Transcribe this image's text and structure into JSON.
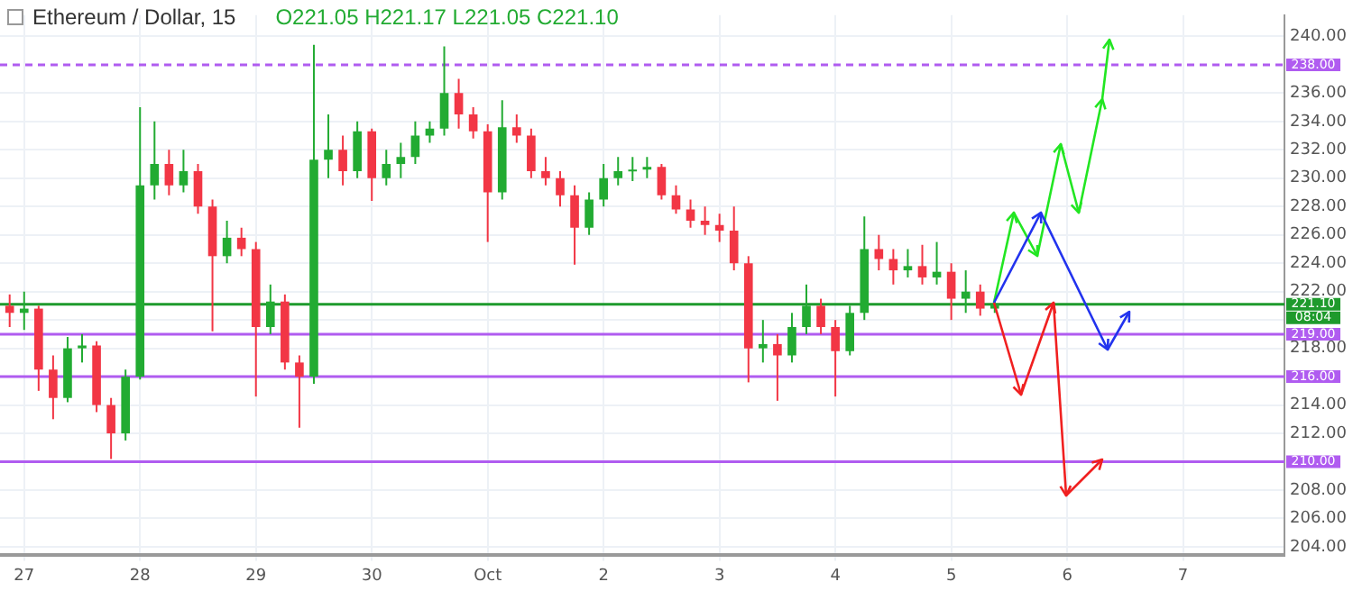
{
  "chart_data": {
    "type": "candlestick",
    "title": "Ethereum / Dollar, 15",
    "subtitle": "O221.05 H221.17 L221.05 C221.10",
    "xlim": [
      "--09-26T19:00",
      "--10-07T21:00"
    ],
    "xticks": [
      {
        "value": "--09-27",
        "label": "27"
      },
      {
        "value": "--09-28",
        "label": "28"
      },
      {
        "value": "--09-29",
        "label": "29"
      },
      {
        "value": "--09-30",
        "label": "30"
      },
      {
        "value": "--10-01",
        "label": "Oct"
      },
      {
        "value": "--10-02",
        "label": "2"
      },
      {
        "value": "--10-03",
        "label": "3"
      },
      {
        "value": "--10-04",
        "label": "4"
      },
      {
        "value": "--10-05",
        "label": "5"
      },
      {
        "value": "--10-06",
        "label": "6"
      },
      {
        "value": "--10-07",
        "label": "7"
      }
    ],
    "ylim": [
      203.4,
      241.5
    ],
    "yticks": [
      {
        "value": 204,
        "label": "204.00"
      },
      {
        "value": 206,
        "label": "206.00"
      },
      {
        "value": 208,
        "label": "208.00"
      },
      {
        "value": 212,
        "label": "212.00"
      },
      {
        "value": 214,
        "label": "214.00"
      },
      {
        "value": 218,
        "label": "218.00"
      },
      {
        "value": 220,
        "label": null
      },
      {
        "value": 222,
        "label": "222.00"
      },
      {
        "value": 224,
        "label": "224.00"
      },
      {
        "value": 226,
        "label": "226.00"
      },
      {
        "value": 228,
        "label": "228.00"
      },
      {
        "value": 230,
        "label": "230.00"
      },
      {
        "value": 232,
        "label": "232.00"
      },
      {
        "value": 234,
        "label": "234.00"
      },
      {
        "value": 236,
        "label": "236.00"
      },
      {
        "value": 240,
        "label": "240.00"
      }
    ],
    "grid": true,
    "legend": false,
    "series": [
      {
        "type": "candlestick",
        "colors": [
          "#f23645",
          "#22ab32",
          "#f23645",
          "#f23645",
          "#22ab32",
          "#22ab32",
          "#f23645",
          "#f23645",
          "#22ab32",
          "#22ab32",
          "#22ab32",
          "#f23645",
          "#22ab32",
          "#f23645",
          "#f23645",
          "#22ab32",
          "#f23645",
          "#f23645",
          "#22ab32",
          "#f23645",
          "#f23645",
          "#22ab32",
          "#22ab32",
          "#f23645",
          "#22ab32",
          "#f23645",
          "#22ab32",
          "#22ab32",
          "#22ab32",
          "#22ab32",
          "#22ab32",
          "#f23645",
          "#f23645",
          "#f23645",
          "#22ab32",
          "#f23645",
          "#f23645",
          "#f23645",
          "#f23645",
          "#f23645",
          "#22ab32",
          "#22ab32",
          "#22ab32",
          "#22ab32",
          "#22ab32",
          "#f23645",
          "#f23645",
          "#f23645",
          "#f23645",
          "#f23645",
          "#f23645",
          "#f23645",
          "#22ab32",
          "#f23645",
          "#22ab32",
          "#22ab32",
          "#f23645",
          "#f23645",
          "#22ab32",
          "#22ab32",
          "#f23645",
          "#f23645",
          "#22ab32",
          "#f23645",
          "#22ab32",
          "#f23645",
          "#22ab32",
          "#f23645",
          "#22ab32"
        ],
        "x": [
          "--09-26T21:00",
          "--09-27T00:00",
          "--09-27T03:00",
          "--09-27T06:00",
          "--09-27T09:00",
          "--09-27T12:00",
          "--09-27T15:00",
          "--09-27T18:00",
          "--09-27T21:00",
          "--09-28T00:00",
          "--09-28T03:00",
          "--09-28T06:00",
          "--09-28T09:00",
          "--09-28T12:00",
          "--09-28T15:00",
          "--09-28T18:00",
          "--09-28T21:00",
          "--09-29T00:00",
          "--09-29T03:00",
          "--09-29T06:00",
          "--09-29T09:00",
          "--09-29T12:00",
          "--09-29T15:00",
          "--09-29T18:00",
          "--09-29T21:00",
          "--09-30T00:00",
          "--09-30T03:00",
          "--09-30T06:00",
          "--09-30T09:00",
          "--09-30T12:00",
          "--09-30T15:00",
          "--09-30T18:00",
          "--09-30T21:00",
          "--10-01T00:00",
          "--10-01T03:00",
          "--10-01T06:00",
          "--10-01T09:00",
          "--10-01T12:00",
          "--10-01T15:00",
          "--10-01T18:00",
          "--10-01T21:00",
          "--10-02T00:00",
          "--10-02T03:00",
          "--10-02T06:00",
          "--10-02T09:00",
          "--10-02T12:00",
          "--10-02T15:00",
          "--10-02T18:00",
          "--10-02T21:00",
          "--10-03T00:00",
          "--10-03T03:00",
          "--10-03T06:00",
          "--10-03T09:00",
          "--10-03T12:00",
          "--10-03T15:00",
          "--10-03T18:00",
          "--10-03T21:00",
          "--10-04T00:00",
          "--10-04T03:00",
          "--10-04T06:00",
          "--10-04T09:00",
          "--10-04T12:00",
          "--10-04T15:00",
          "--10-04T18:00",
          "--10-04T21:00",
          "--10-05T00:00",
          "--10-05T03:00",
          "--10-05T06:00",
          "--10-05T09:00"
        ],
        "ohlc": [
          [
            221,
            221.8,
            219.5,
            220.5
          ],
          [
            220.5,
            222,
            219.3,
            220.8
          ],
          [
            220.8,
            221,
            215,
            216.5
          ],
          [
            216.5,
            217.5,
            213,
            214.5
          ],
          [
            214.5,
            218.8,
            214.2,
            218
          ],
          [
            218,
            219,
            217,
            218.2
          ],
          [
            218.2,
            218.5,
            213.5,
            214
          ],
          [
            214,
            214.5,
            210.2,
            212
          ],
          [
            212,
            216.5,
            211.5,
            216
          ],
          [
            216,
            235,
            215.8,
            229.5
          ],
          [
            229.5,
            234,
            228.5,
            231
          ],
          [
            231,
            232,
            228.8,
            229.5
          ],
          [
            229.5,
            232,
            229,
            230.5
          ],
          [
            230.5,
            231,
            227.5,
            228
          ],
          [
            228,
            228.5,
            219.2,
            224.5
          ],
          [
            224.5,
            227,
            224,
            225.8
          ],
          [
            225.8,
            226.5,
            224.5,
            225
          ],
          [
            225,
            225.5,
            214.6,
            219.5
          ],
          [
            219.5,
            222.5,
            219,
            221.3
          ],
          [
            221.3,
            221.8,
            216.5,
            217
          ],
          [
            217,
            217.5,
            212.4,
            216
          ],
          [
            216,
            239.4,
            215.5,
            231.3
          ],
          [
            231.3,
            234.5,
            230,
            232
          ],
          [
            232,
            233,
            229.5,
            230.5
          ],
          [
            230.5,
            234,
            230,
            233.3
          ],
          [
            233.3,
            233.5,
            228.4,
            230
          ],
          [
            230,
            232,
            229.5,
            231
          ],
          [
            231,
            232.5,
            230,
            231.5
          ],
          [
            231.5,
            234,
            231,
            233
          ],
          [
            233,
            234,
            232.5,
            233.5
          ],
          [
            233.5,
            239.3,
            233,
            236
          ],
          [
            236,
            237,
            233.5,
            234.5
          ],
          [
            234.5,
            235,
            232.8,
            233.3
          ],
          [
            233.3,
            233.8,
            225.5,
            229
          ],
          [
            229,
            235.5,
            228.5,
            233.6
          ],
          [
            233.6,
            234.5,
            232.5,
            233
          ],
          [
            233,
            233.5,
            230,
            230.5
          ],
          [
            230.5,
            231.5,
            229.5,
            230
          ],
          [
            230,
            230.5,
            228,
            228.8
          ],
          [
            228.8,
            229.5,
            223.9,
            226.5
          ],
          [
            226.5,
            229,
            226,
            228.5
          ],
          [
            228.5,
            231,
            228,
            230
          ],
          [
            230,
            231.5,
            229.5,
            230.5
          ],
          [
            230.5,
            231.5,
            229.8,
            230.6
          ],
          [
            230.6,
            231.5,
            230,
            230.8
          ],
          [
            230.8,
            231,
            228.5,
            228.8
          ],
          [
            228.8,
            229.5,
            227.5,
            227.8
          ],
          [
            227.8,
            228.5,
            226.5,
            227
          ],
          [
            227,
            228,
            226,
            226.7
          ],
          [
            226.7,
            227.5,
            225.5,
            226.3
          ],
          [
            226.3,
            228,
            223.5,
            224
          ],
          [
            224,
            224.5,
            215.6,
            218
          ],
          [
            218,
            220,
            217,
            218.3
          ],
          [
            218.3,
            219,
            214.3,
            217.5
          ],
          [
            217.5,
            220.5,
            217,
            219.5
          ],
          [
            219.5,
            222.5,
            219,
            221
          ],
          [
            221,
            221.5,
            219,
            219.5
          ],
          [
            219.5,
            220,
            214.6,
            217.8
          ],
          [
            217.8,
            221,
            217.5,
            220.5
          ],
          [
            220.5,
            227.3,
            220,
            225
          ],
          [
            225,
            226,
            223.5,
            224.3
          ],
          [
            224.3,
            225,
            222.5,
            223.5
          ],
          [
            223.5,
            225,
            223,
            223.8
          ],
          [
            223.8,
            225.3,
            222.5,
            223
          ],
          [
            223,
            225.5,
            222.5,
            223.4
          ],
          [
            223.4,
            224,
            220,
            221.5
          ],
          [
            221.5,
            223.5,
            220.5,
            222
          ],
          [
            222,
            222.5,
            220.3,
            220.8
          ],
          [
            220.8,
            221.5,
            220.5,
            221.1
          ]
        ]
      }
    ],
    "ref_lines": [
      {
        "axis": "y",
        "value": 238,
        "label": "238.00",
        "color": "#b05cf0",
        "line_style": "dashed"
      },
      {
        "axis": "y",
        "value": 221.1,
        "label": "221.10",
        "color": "#1e9a2c",
        "line_style": "solid"
      },
      {
        "axis": "y",
        "value": 219,
        "label": "219.00",
        "color": "#b05cf0",
        "line_style": "solid"
      },
      {
        "axis": "y",
        "value": 216,
        "label": "216.00",
        "color": "#b05cf0",
        "line_style": "solid"
      },
      {
        "axis": "y",
        "value": 210,
        "label": "210.00",
        "color": "#b05cf0",
        "line_style": "solid"
      }
    ],
    "annotations": [
      "08:04"
    ]
  }
}
